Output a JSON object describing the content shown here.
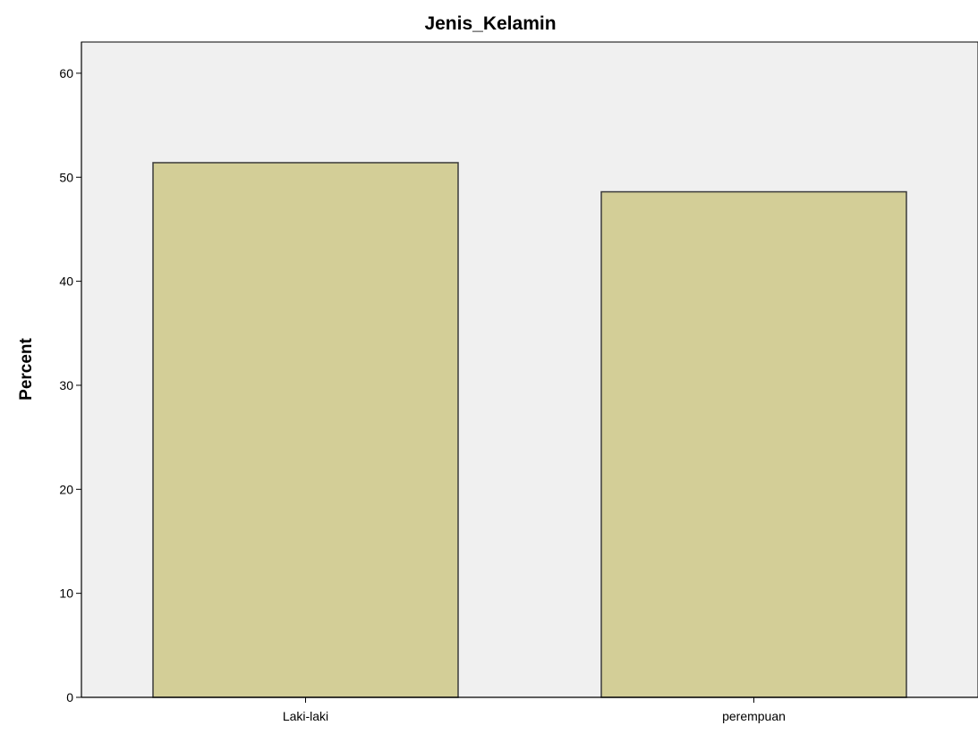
{
  "chart_data": {
    "type": "bar",
    "title": "Jenis_Kelamin",
    "xlabel": "",
    "ylabel": "Percent",
    "categories": [
      "Laki-laki",
      "perempuan"
    ],
    "values": [
      51.4,
      48.6
    ],
    "ylim": [
      0,
      63
    ],
    "yticks": [
      0,
      10,
      20,
      30,
      40,
      50,
      60
    ],
    "grid": false,
    "legend": "none",
    "colors": {
      "plot_background": "#f0f0f0",
      "bar_fill": "#d3ce97",
      "bar_stroke": "#3a3a3a",
      "axis": "#000000"
    }
  }
}
